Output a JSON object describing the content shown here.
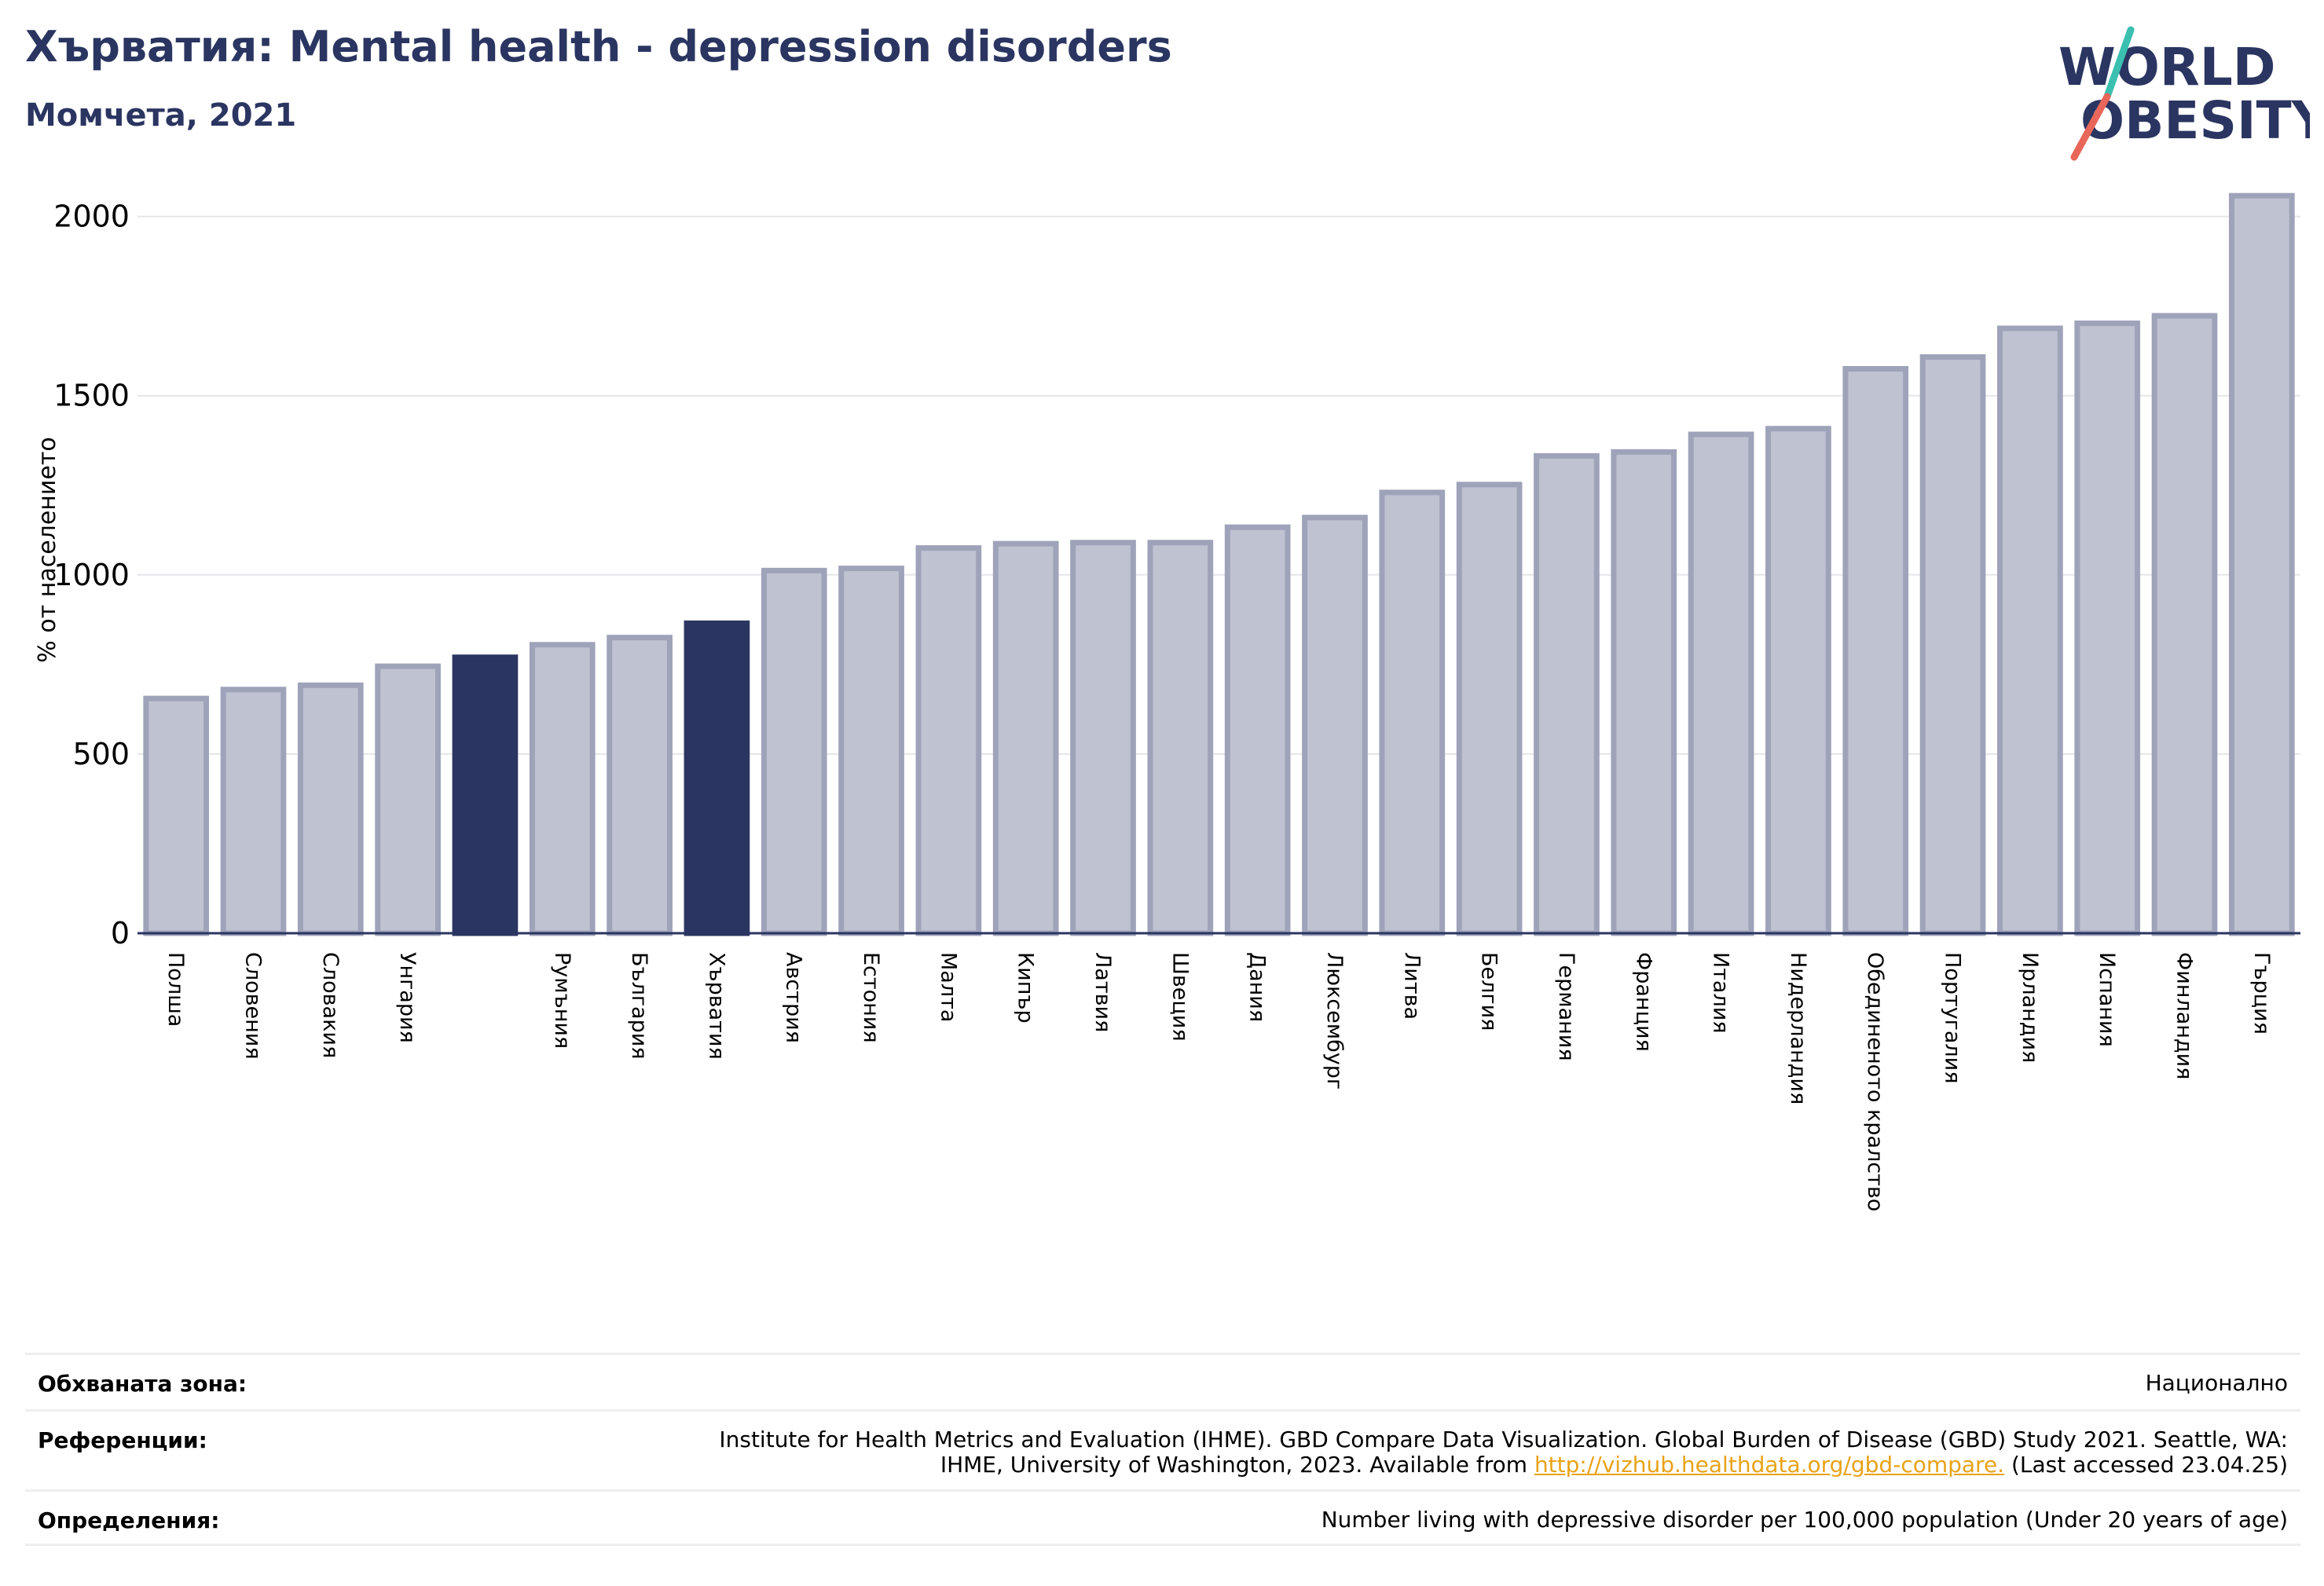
{
  "header": {
    "title": "Хърватия: Mental health - depression disorders",
    "subtitle": "Момчета, 2021",
    "logo_line1": "WORLD",
    "logo_line2": "OBESITY"
  },
  "colors": {
    "highlight": "#2b3561",
    "bar_fill": "#bfc2d0",
    "bar_stroke": "#9ea3ba",
    "title": "#2b3561",
    "logo_slash_teal": "#3bbfb0",
    "logo_slash_red": "#e8675a",
    "link": "#e8a317"
  },
  "chart_data": {
    "type": "bar",
    "ylabel": "% от населението",
    "ylim": [
      0,
      2100
    ],
    "yticks": [
      0,
      500,
      1000,
      1500,
      2000
    ],
    "grid": true,
    "categories": [
      "Полша",
      "Словения",
      "Словакия",
      "Унгария",
      "",
      "Румъния",
      "България",
      "Хърватия",
      "Австрия",
      "Естония",
      "Малта",
      "Кипър",
      "Латвия",
      "Швеция",
      "Дания",
      "Люксембург",
      "Литва",
      "Белгия",
      "Германия",
      "Франция",
      "Италия",
      "Нидерландия",
      "Обединеното кралство",
      "Португалия",
      "Ирландия",
      "Испания",
      "Финландия",
      "Гърция"
    ],
    "values": [
      655,
      680,
      692,
      745,
      770,
      805,
      825,
      865,
      1012,
      1018,
      1075,
      1087,
      1090,
      1090,
      1133,
      1160,
      1230,
      1252,
      1332,
      1343,
      1392,
      1408,
      1575,
      1608,
      1688,
      1702,
      1723,
      2058
    ],
    "highlighted": [
      4,
      7
    ]
  },
  "meta": {
    "coverage_label": "Обхваната зона:",
    "coverage_value": "Национално",
    "references_label": "Референции:",
    "references_text": "Institute for Health Metrics and Evaluation (IHME). GBD Compare Data Visualization. Global Burden of Disease (GBD) Study 2021. Seattle, WA: IHME, University of Washington, 2023. Available from",
    "references_link": "http://vizhub.healthdata.org/gbd-compare.",
    "references_tail": "(Last accessed 23.04.25)",
    "definitions_label": "Определения:",
    "definitions_value": "Number living with depressive disorder per 100,000 population (Under 20 years of age)"
  }
}
